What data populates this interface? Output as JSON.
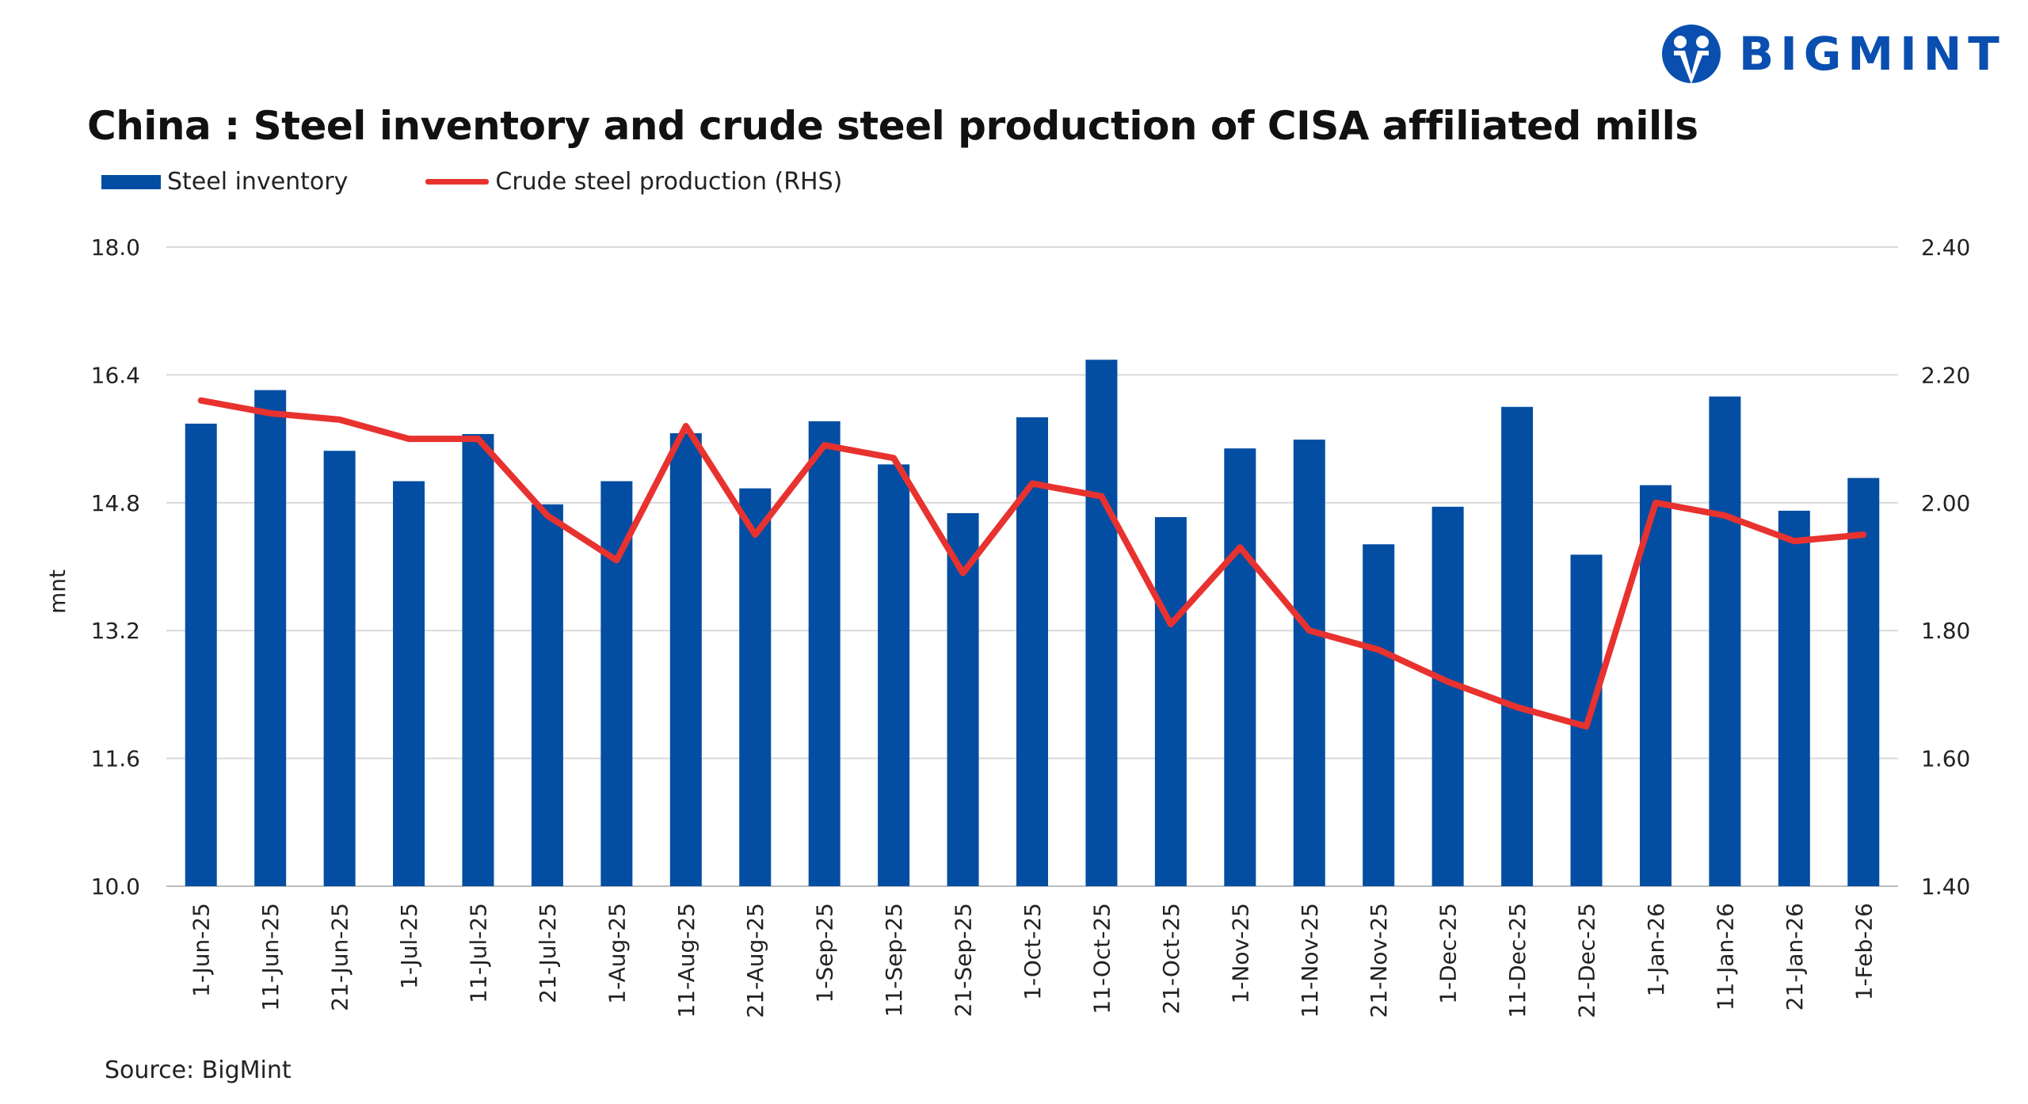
{
  "logo": {
    "text": "BIGMINT",
    "color": "#0a4fb0"
  },
  "source": "Source: BigMint",
  "chart_data": {
    "type": "bar+line",
    "title": "China : Steel inventory and crude steel production of CISA affiliated mills",
    "ylabel": "mnt",
    "ylim": [
      10.0,
      18.0
    ],
    "y2lim": [
      1.4,
      2.4
    ],
    "yticks": [
      "10.0",
      "11.6",
      "13.2",
      "14.8",
      "16.4",
      "18.0"
    ],
    "y2ticks": [
      "1.40",
      "1.60",
      "1.80",
      "2.00",
      "2.20",
      "2.40"
    ],
    "grid": true,
    "legend": "top-left",
    "categories": [
      "1-Jun-25",
      "11-Jun-25",
      "21-Jun-25",
      "1-Jul-25",
      "11-Jul-25",
      "21-Jul-25",
      "1-Aug-25",
      "11-Aug-25",
      "21-Aug-25",
      "1-Sep-25",
      "11-Sep-25",
      "21-Sep-25",
      "1-Oct-25",
      "11-Oct-25",
      "21-Oct-25",
      "1-Nov-25",
      "11-Nov-25",
      "21-Nov-25",
      "1-Dec-25",
      "11-Dec-25",
      "21-Dec-25",
      "1-Jan-26",
      "11-Jan-26",
      "21-Jan-26",
      "1-Feb-26"
    ],
    "series": [
      {
        "name": "Steel inventory",
        "type": "bar",
        "axis": "left",
        "color": "#034ea2",
        "values": [
          15.79,
          16.21,
          15.45,
          15.07,
          15.66,
          14.78,
          15.07,
          15.67,
          14.98,
          15.82,
          15.28,
          14.67,
          15.87,
          16.59,
          14.62,
          15.48,
          15.59,
          14.28,
          14.75,
          16.0,
          14.15,
          15.02,
          16.13,
          14.7,
          15.11
        ]
      },
      {
        "name": "Crude steel production (RHS)",
        "type": "line",
        "axis": "right",
        "color": "#e8322f",
        "values": [
          2.16,
          2.14,
          2.13,
          2.1,
          2.1,
          1.98,
          1.91,
          2.12,
          1.95,
          2.09,
          2.07,
          1.89,
          2.03,
          2.01,
          1.81,
          1.93,
          1.8,
          1.77,
          1.72,
          1.68,
          1.65,
          2.0,
          1.98,
          1.94,
          1.95
        ]
      }
    ]
  }
}
